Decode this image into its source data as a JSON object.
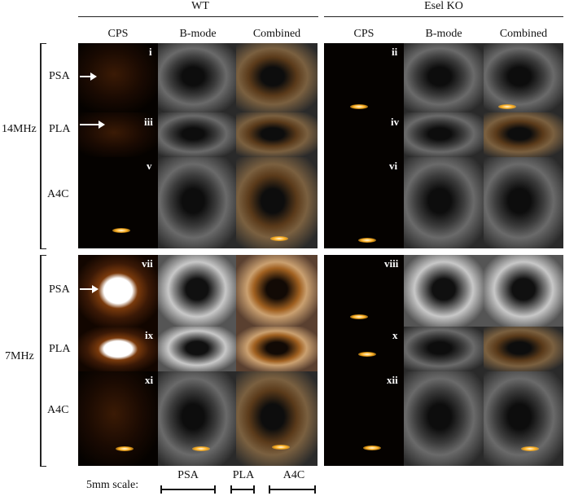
{
  "groups": {
    "wt": "WT",
    "ko": "Esel KO"
  },
  "columns": {
    "cps": "CPS",
    "bmode": "B-mode",
    "combined": "Combined"
  },
  "frequencies": {
    "high": "14MHz",
    "low": "7MHz"
  },
  "views": {
    "psa": "PSA",
    "pla": "PLA",
    "a4c": "A4C"
  },
  "panel_labels": [
    "i",
    "ii",
    "iii",
    "iv",
    "v",
    "vi",
    "vii",
    "viii",
    "ix",
    "x",
    "xi",
    "xii"
  ],
  "scale": {
    "label": "5mm scale:",
    "psa": "PSA",
    "pla": "PLA",
    "a4c": "A4C"
  }
}
